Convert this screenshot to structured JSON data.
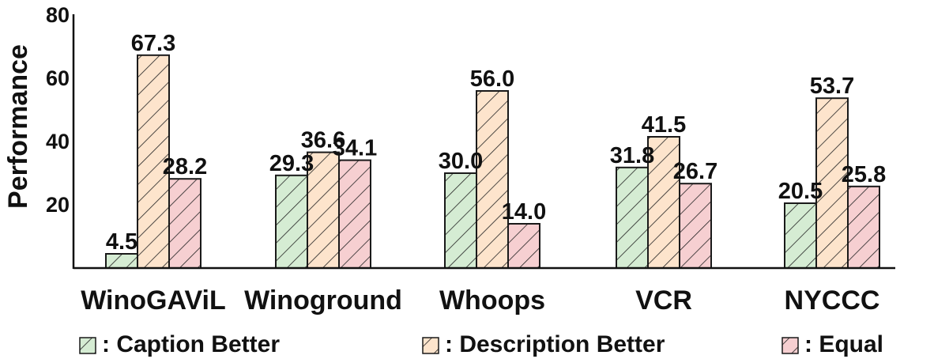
{
  "chart_data": {
    "type": "bar",
    "title": "",
    "xlabel": "",
    "ylabel": "Performance",
    "ylim": [
      0,
      80
    ],
    "yticks": [
      20,
      40,
      60,
      80
    ],
    "grid": false,
    "legend_position": "bottom",
    "categories": [
      "WinoGAViL",
      "Winoground",
      "Whoops",
      "VCR",
      "NYCCC"
    ],
    "series": [
      {
        "name": ": Caption Better",
        "color": "#d5ecd3",
        "pattern": "diagonal-hatch",
        "values": [
          4.5,
          29.3,
          30.0,
          31.8,
          20.5
        ]
      },
      {
        "name": ": Description Better",
        "color": "#fde4cc",
        "pattern": "diagonal-hatch",
        "values": [
          67.3,
          36.6,
          56.0,
          41.5,
          53.7
        ]
      },
      {
        "name": ": Equal",
        "color": "#f6cfd1",
        "pattern": "diagonal-hatch",
        "values": [
          28.2,
          34.1,
          14.0,
          26.7,
          25.8
        ]
      }
    ]
  }
}
